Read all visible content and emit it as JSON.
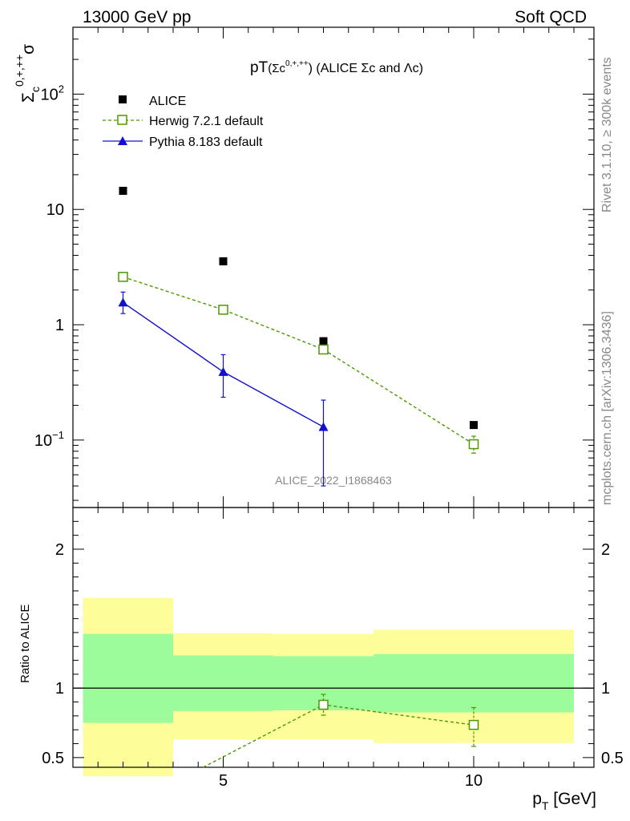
{
  "header": {
    "left": "13000 GeV pp",
    "right": "Soft QCD"
  },
  "side": {
    "rivet": "Rivet 3.1.10, ≥ 300k events",
    "mcplots": "mcplots.cern.ch [arXiv:1306.3436]"
  },
  "chart_data": [
    {
      "type": "scatter",
      "title": {
        "main": "pT",
        "open": "(Σc",
        "sup": "0,+,++",
        "close": ") (ALICE Σc and Λc)"
      },
      "ylabel": {
        "base": "Σ",
        "sub": "c",
        "sup": "0,+,++",
        "tail": "σ"
      },
      "xlabel": "",
      "yscale": "log",
      "xlim": [
        2,
        12.4
      ],
      "ylim": [
        0.026,
        380
      ],
      "yticks": [
        {
          "value": 0.1,
          "base": "10",
          "exp": "−1"
        },
        {
          "value": 1,
          "base": "1",
          "exp": ""
        },
        {
          "value": 10,
          "base": "10",
          "exp": ""
        },
        {
          "value": 100,
          "base": "10",
          "exp": "2"
        }
      ],
      "watermark": "ALICE_2022_I1868463",
      "legend": {
        "position": "top-left",
        "entries": [
          "ALICE",
          "Herwig 7.2.1 default",
          "Pythia 8.183 default"
        ]
      },
      "series": [
        {
          "name": "ALICE",
          "color": "#000000",
          "style": "square",
          "x": [
            3,
            5,
            7,
            10
          ],
          "y": [
            14.5,
            3.55,
            0.72,
            0.135
          ],
          "ylo": [
            14.5,
            3.55,
            0.72,
            0.135
          ],
          "yhi": [
            14.5,
            3.55,
            0.72,
            0.135
          ]
        },
        {
          "name": "Herwig 7.2.1 default",
          "color": "#4c9a00",
          "style": "open-square-dashed",
          "x": [
            3,
            5,
            7,
            10
          ],
          "y": [
            2.6,
            1.35,
            0.61,
            0.092
          ],
          "ylo": [
            2.5,
            1.3,
            0.56,
            0.077
          ],
          "yhi": [
            2.7,
            1.4,
            0.66,
            0.108
          ]
        },
        {
          "name": "Pythia 8.183 default",
          "color": "#1010d0",
          "style": "filled-triangle-solid",
          "x": [
            3,
            5,
            7
          ],
          "y": [
            1.56,
            0.39,
            0.13
          ],
          "ylo": [
            1.25,
            0.235,
            0.04
          ],
          "yhi": [
            1.92,
            0.55,
            0.222
          ]
        }
      ]
    },
    {
      "type": "line",
      "xlabel": "p",
      "xlabel_sub": "T",
      "xlabel_tail": " [GeV]",
      "ylabel": "Ratio to ALICE",
      "xlim": [
        2,
        12.4
      ],
      "ylim": [
        0.43,
        2.3
      ],
      "xticks": [
        5,
        10
      ],
      "yticks": [
        0.5,
        1,
        2
      ],
      "reference_line": 1,
      "bands": [
        {
          "x0": 2.2,
          "x1": 4.0,
          "inner": [
            0.75,
            1.39
          ],
          "outer": [
            0.365,
            1.65
          ]
        },
        {
          "x0": 4.0,
          "x1": 6.0,
          "inner": [
            0.835,
            1.235
          ],
          "outer": [
            0.63,
            1.395
          ]
        },
        {
          "x0": 6.0,
          "x1": 8.0,
          "inner": [
            0.84,
            1.23
          ],
          "outer": [
            0.63,
            1.39
          ]
        },
        {
          "x0": 8.0,
          "x1": 12.0,
          "inner": [
            0.825,
            1.245
          ],
          "outer": [
            0.605,
            1.42
          ]
        }
      ],
      "series": [
        {
          "name": "Herwig 7.2.1 default",
          "color": "#4c9a00",
          "style": "open-square-dashed",
          "x": [
            4.6,
            7,
            10
          ],
          "y": [
            0.43,
            0.88,
            0.735
          ],
          "ylo": [
            0.43,
            0.805,
            0.58
          ],
          "yhi": [
            0.43,
            0.955,
            0.86
          ],
          "marker": [
            false,
            true,
            true
          ]
        }
      ]
    }
  ]
}
